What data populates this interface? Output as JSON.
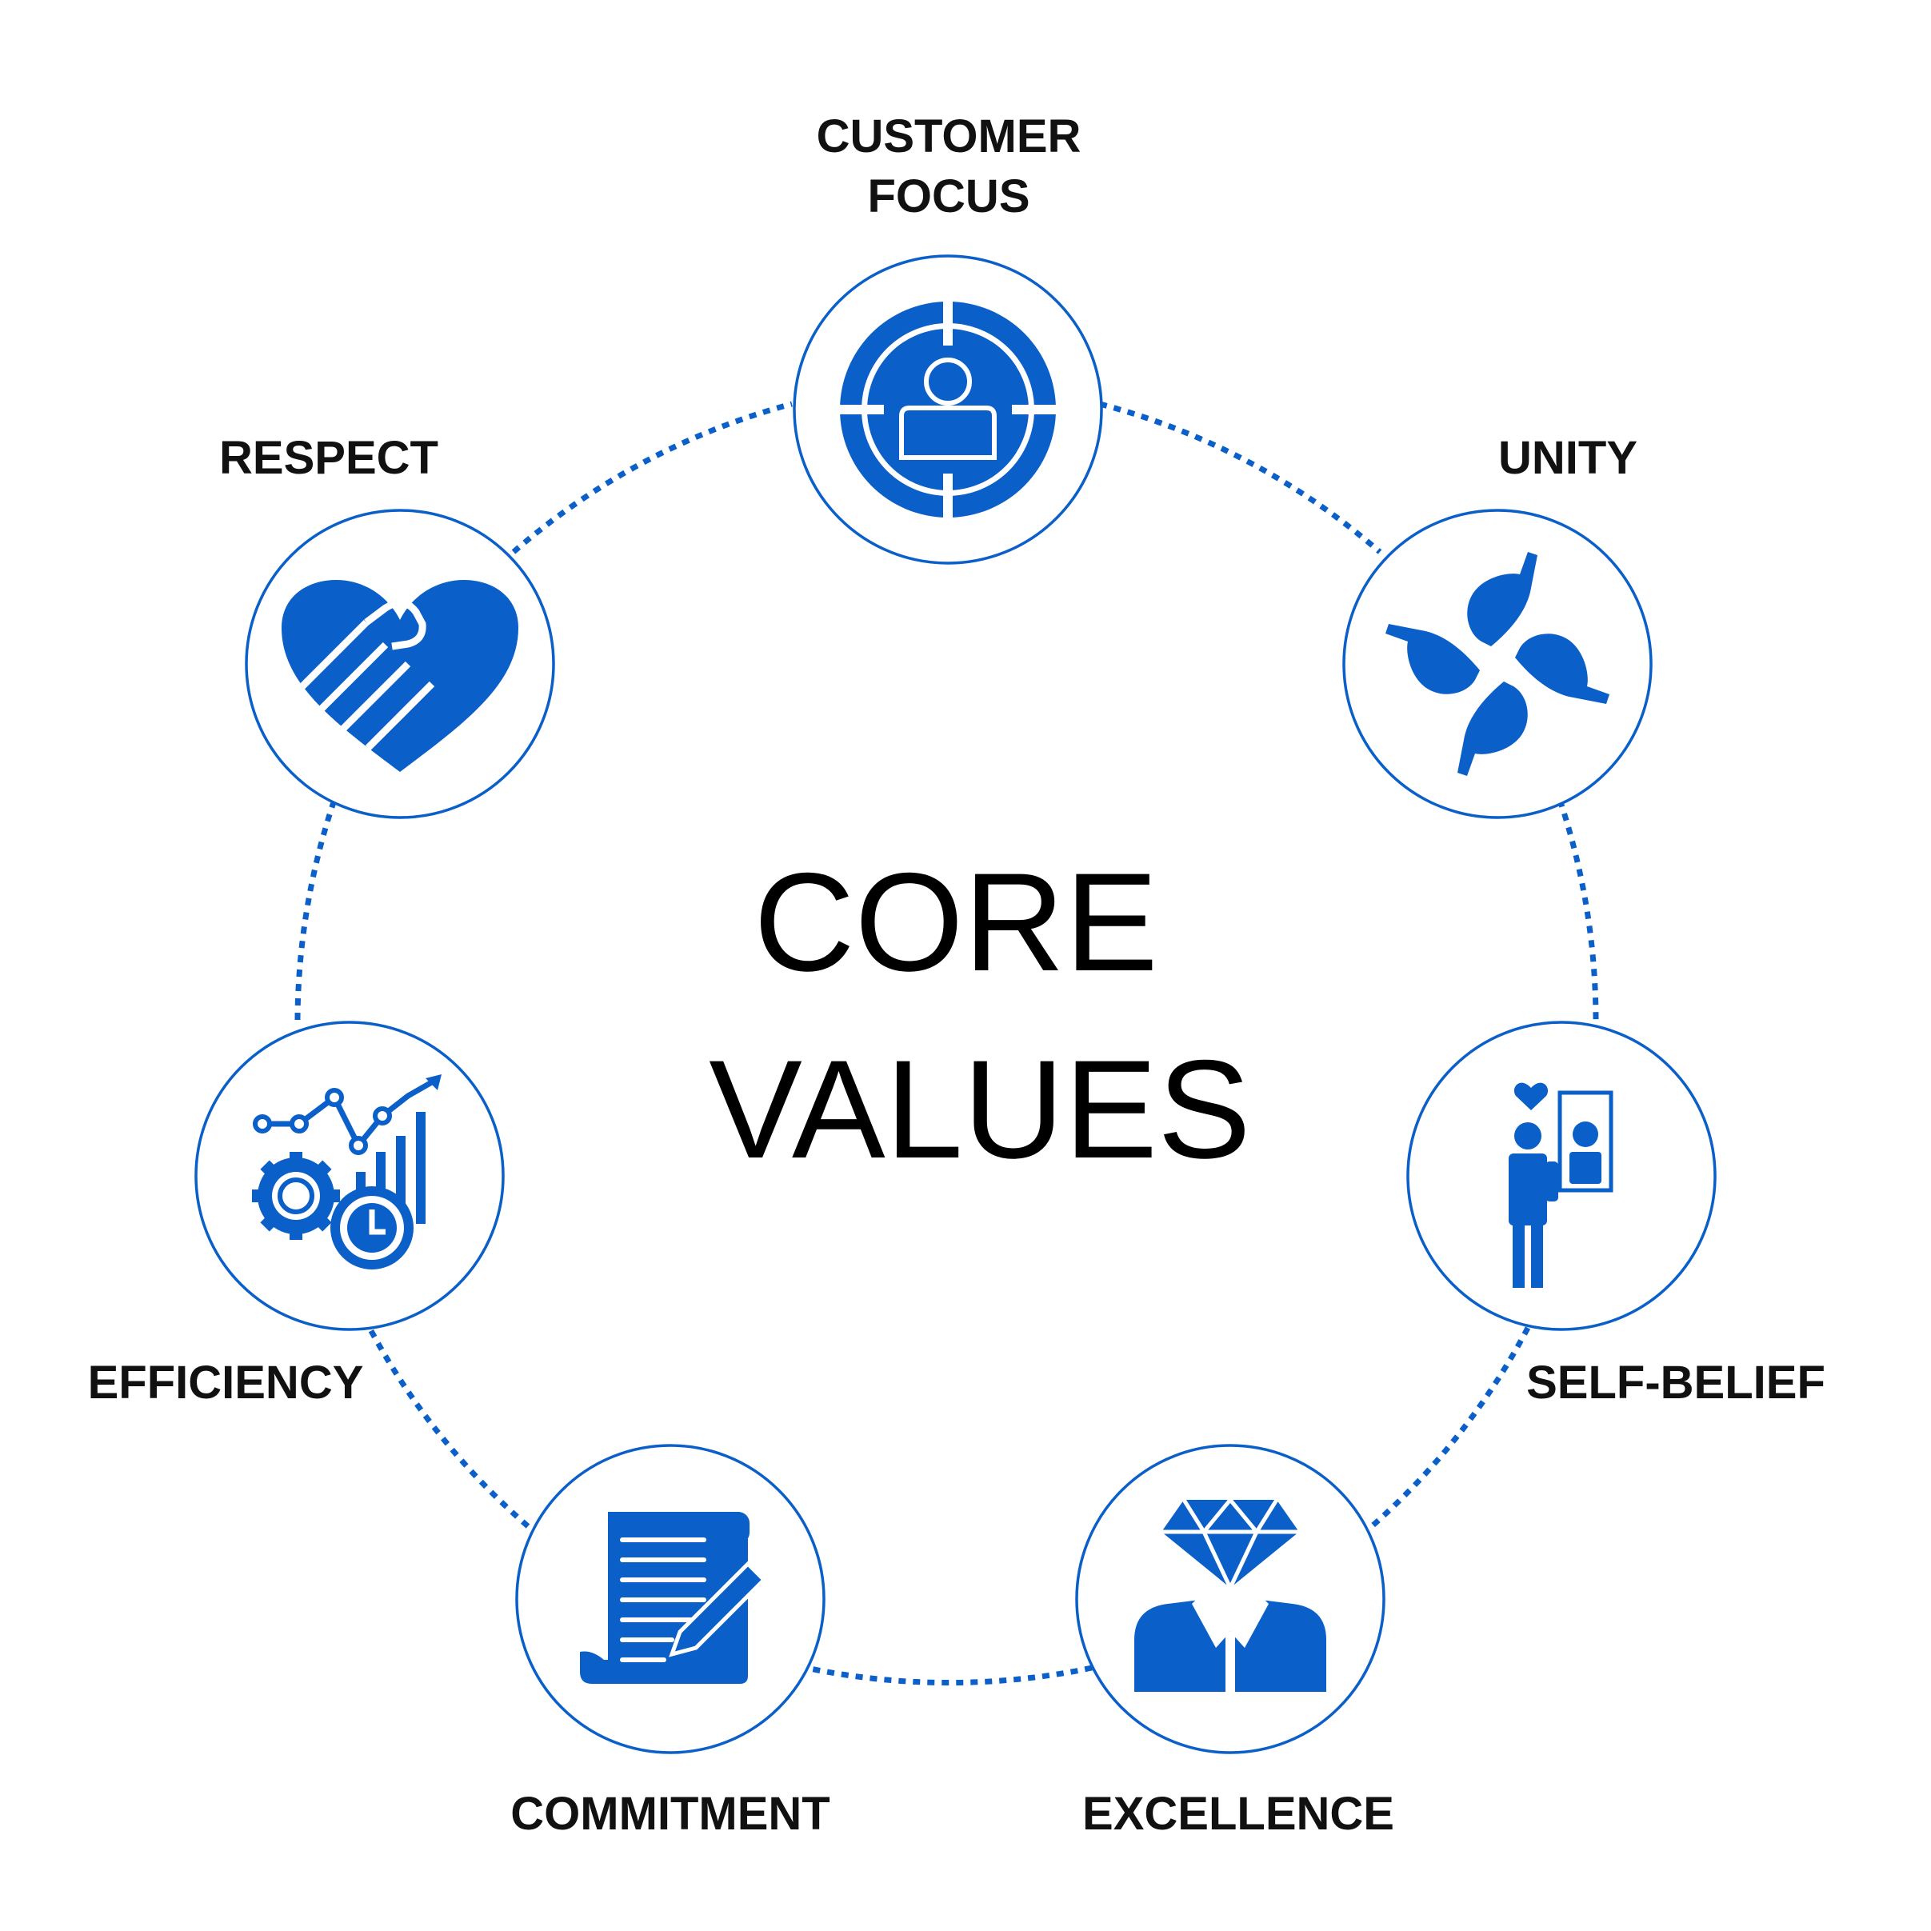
{
  "title": {
    "line1": "CORE",
    "line2": "VALUES"
  },
  "colors": {
    "accent": "#0A5FC9",
    "text": "#111111",
    "background": "#FFFFFF"
  },
  "values": [
    {
      "id": "customer-focus",
      "label_line1": "CUSTOMER",
      "label_line2": "FOCUS",
      "icon": "target-person-icon"
    },
    {
      "id": "unity",
      "label_line1": "UNITY",
      "label_line2": "",
      "icon": "four-hands-icon"
    },
    {
      "id": "self-belief",
      "label_line1": "SELF-BELIEF",
      "label_line2": "",
      "icon": "person-mirror-icon"
    },
    {
      "id": "excellence",
      "label_line1": "EXCELLENCE",
      "label_line2": "",
      "icon": "diamond-person-icon"
    },
    {
      "id": "commitment",
      "label_line1": "COMMITMENT",
      "label_line2": "",
      "icon": "contract-pen-icon"
    },
    {
      "id": "efficiency",
      "label_line1": "EFFICIENCY",
      "label_line2": "",
      "icon": "gears-chart-icon"
    },
    {
      "id": "respect",
      "label_line1": "RESPECT",
      "label_line2": "",
      "icon": "heart-handshake-icon"
    }
  ]
}
